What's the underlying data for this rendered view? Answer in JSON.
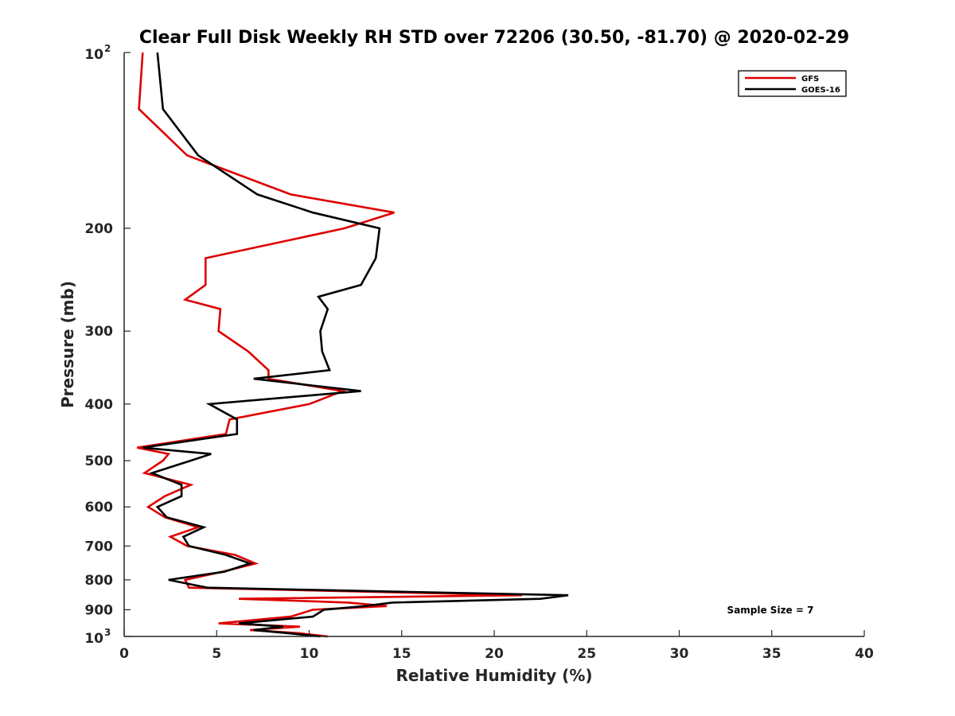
{
  "chart_data": {
    "type": "line",
    "title": "Clear Full Disk Weekly RH STD over 72206 (30.50, -81.70) @ 2020-02-29",
    "xlabel": "Relative Humidity (%)",
    "ylabel": "Pressure (mb)",
    "xlim": [
      0,
      40
    ],
    "ylim": [
      100,
      1000
    ],
    "yscale": "log",
    "y_reversed": true,
    "grid": false,
    "legend_position": "top-right",
    "x_ticks": [
      0,
      5,
      10,
      15,
      20,
      25,
      30,
      35,
      40
    ],
    "y_ticks": [
      {
        "value": 100,
        "base": "10",
        "exp": "2"
      },
      {
        "value": 200,
        "label": "200"
      },
      {
        "value": 300,
        "label": "300"
      },
      {
        "value": 400,
        "label": "400"
      },
      {
        "value": 500,
        "label": "500"
      },
      {
        "value": 600,
        "label": "600"
      },
      {
        "value": 700,
        "label": "700"
      },
      {
        "value": 800,
        "label": "800"
      },
      {
        "value": 900,
        "label": "900"
      },
      {
        "value": 1000,
        "base": "10",
        "exp": "3"
      }
    ],
    "annotation": "Sample Size = 7",
    "series": [
      {
        "name": "GFS",
        "color": "#dd0000",
        "points": [
          [
            1.0,
            100
          ],
          [
            0.8,
            125
          ],
          [
            3.4,
            150
          ],
          [
            9.0,
            175
          ],
          [
            14.6,
            188
          ],
          [
            11.9,
            200
          ],
          [
            4.4,
            225
          ],
          [
            4.4,
            250
          ],
          [
            3.3,
            265
          ],
          [
            5.2,
            275
          ],
          [
            5.1,
            300
          ],
          [
            6.7,
            325
          ],
          [
            7.8,
            350
          ],
          [
            7.8,
            362
          ],
          [
            11.8,
            380
          ],
          [
            10.0,
            400
          ],
          [
            5.7,
            425
          ],
          [
            5.5,
            450
          ],
          [
            0.7,
            475
          ],
          [
            2.4,
            487
          ],
          [
            2.1,
            500
          ],
          [
            1.1,
            525
          ],
          [
            3.6,
            550
          ],
          [
            2.2,
            575
          ],
          [
            1.3,
            600
          ],
          [
            2.2,
            625
          ],
          [
            4.0,
            650
          ],
          [
            2.5,
            675
          ],
          [
            3.4,
            700
          ],
          [
            6.0,
            725
          ],
          [
            7.1,
            750
          ],
          [
            5.3,
            775
          ],
          [
            3.3,
            800
          ],
          [
            3.5,
            825
          ],
          [
            21.5,
            850
          ],
          [
            6.2,
            862
          ],
          [
            12.1,
            875
          ],
          [
            14.2,
            887
          ],
          [
            10.2,
            900
          ],
          [
            9.0,
            925
          ],
          [
            5.1,
            950
          ],
          [
            9.5,
            962
          ],
          [
            6.8,
            975
          ],
          [
            9.4,
            987
          ],
          [
            11.0,
            1000
          ]
        ]
      },
      {
        "name": "GOES-16",
        "color": "#000000",
        "points": [
          [
            1.8,
            100
          ],
          [
            2.1,
            125
          ],
          [
            4.0,
            150
          ],
          [
            7.2,
            175
          ],
          [
            10.2,
            188
          ],
          [
            13.8,
            200
          ],
          [
            13.6,
            225
          ],
          [
            12.8,
            250
          ],
          [
            10.5,
            262
          ],
          [
            11.0,
            275
          ],
          [
            10.6,
            300
          ],
          [
            10.7,
            325
          ],
          [
            11.1,
            350
          ],
          [
            7.0,
            362
          ],
          [
            12.8,
            380
          ],
          [
            4.6,
            400
          ],
          [
            6.1,
            425
          ],
          [
            6.1,
            450
          ],
          [
            1.0,
            475
          ],
          [
            4.7,
            487
          ],
          [
            3.6,
            500
          ],
          [
            1.5,
            525
          ],
          [
            3.1,
            550
          ],
          [
            3.1,
            575
          ],
          [
            1.8,
            600
          ],
          [
            2.3,
            625
          ],
          [
            4.3,
            650
          ],
          [
            3.2,
            675
          ],
          [
            3.5,
            700
          ],
          [
            5.5,
            725
          ],
          [
            6.8,
            750
          ],
          [
            5.4,
            775
          ],
          [
            2.4,
            800
          ],
          [
            4.5,
            825
          ],
          [
            24.0,
            850
          ],
          [
            22.5,
            862
          ],
          [
            14.5,
            875
          ],
          [
            13.0,
            887
          ],
          [
            10.8,
            900
          ],
          [
            10.2,
            925
          ],
          [
            6.2,
            950
          ],
          [
            8.6,
            962
          ],
          [
            7.0,
            975
          ],
          [
            8.8,
            987
          ],
          [
            10.6,
            1000
          ]
        ]
      }
    ]
  }
}
